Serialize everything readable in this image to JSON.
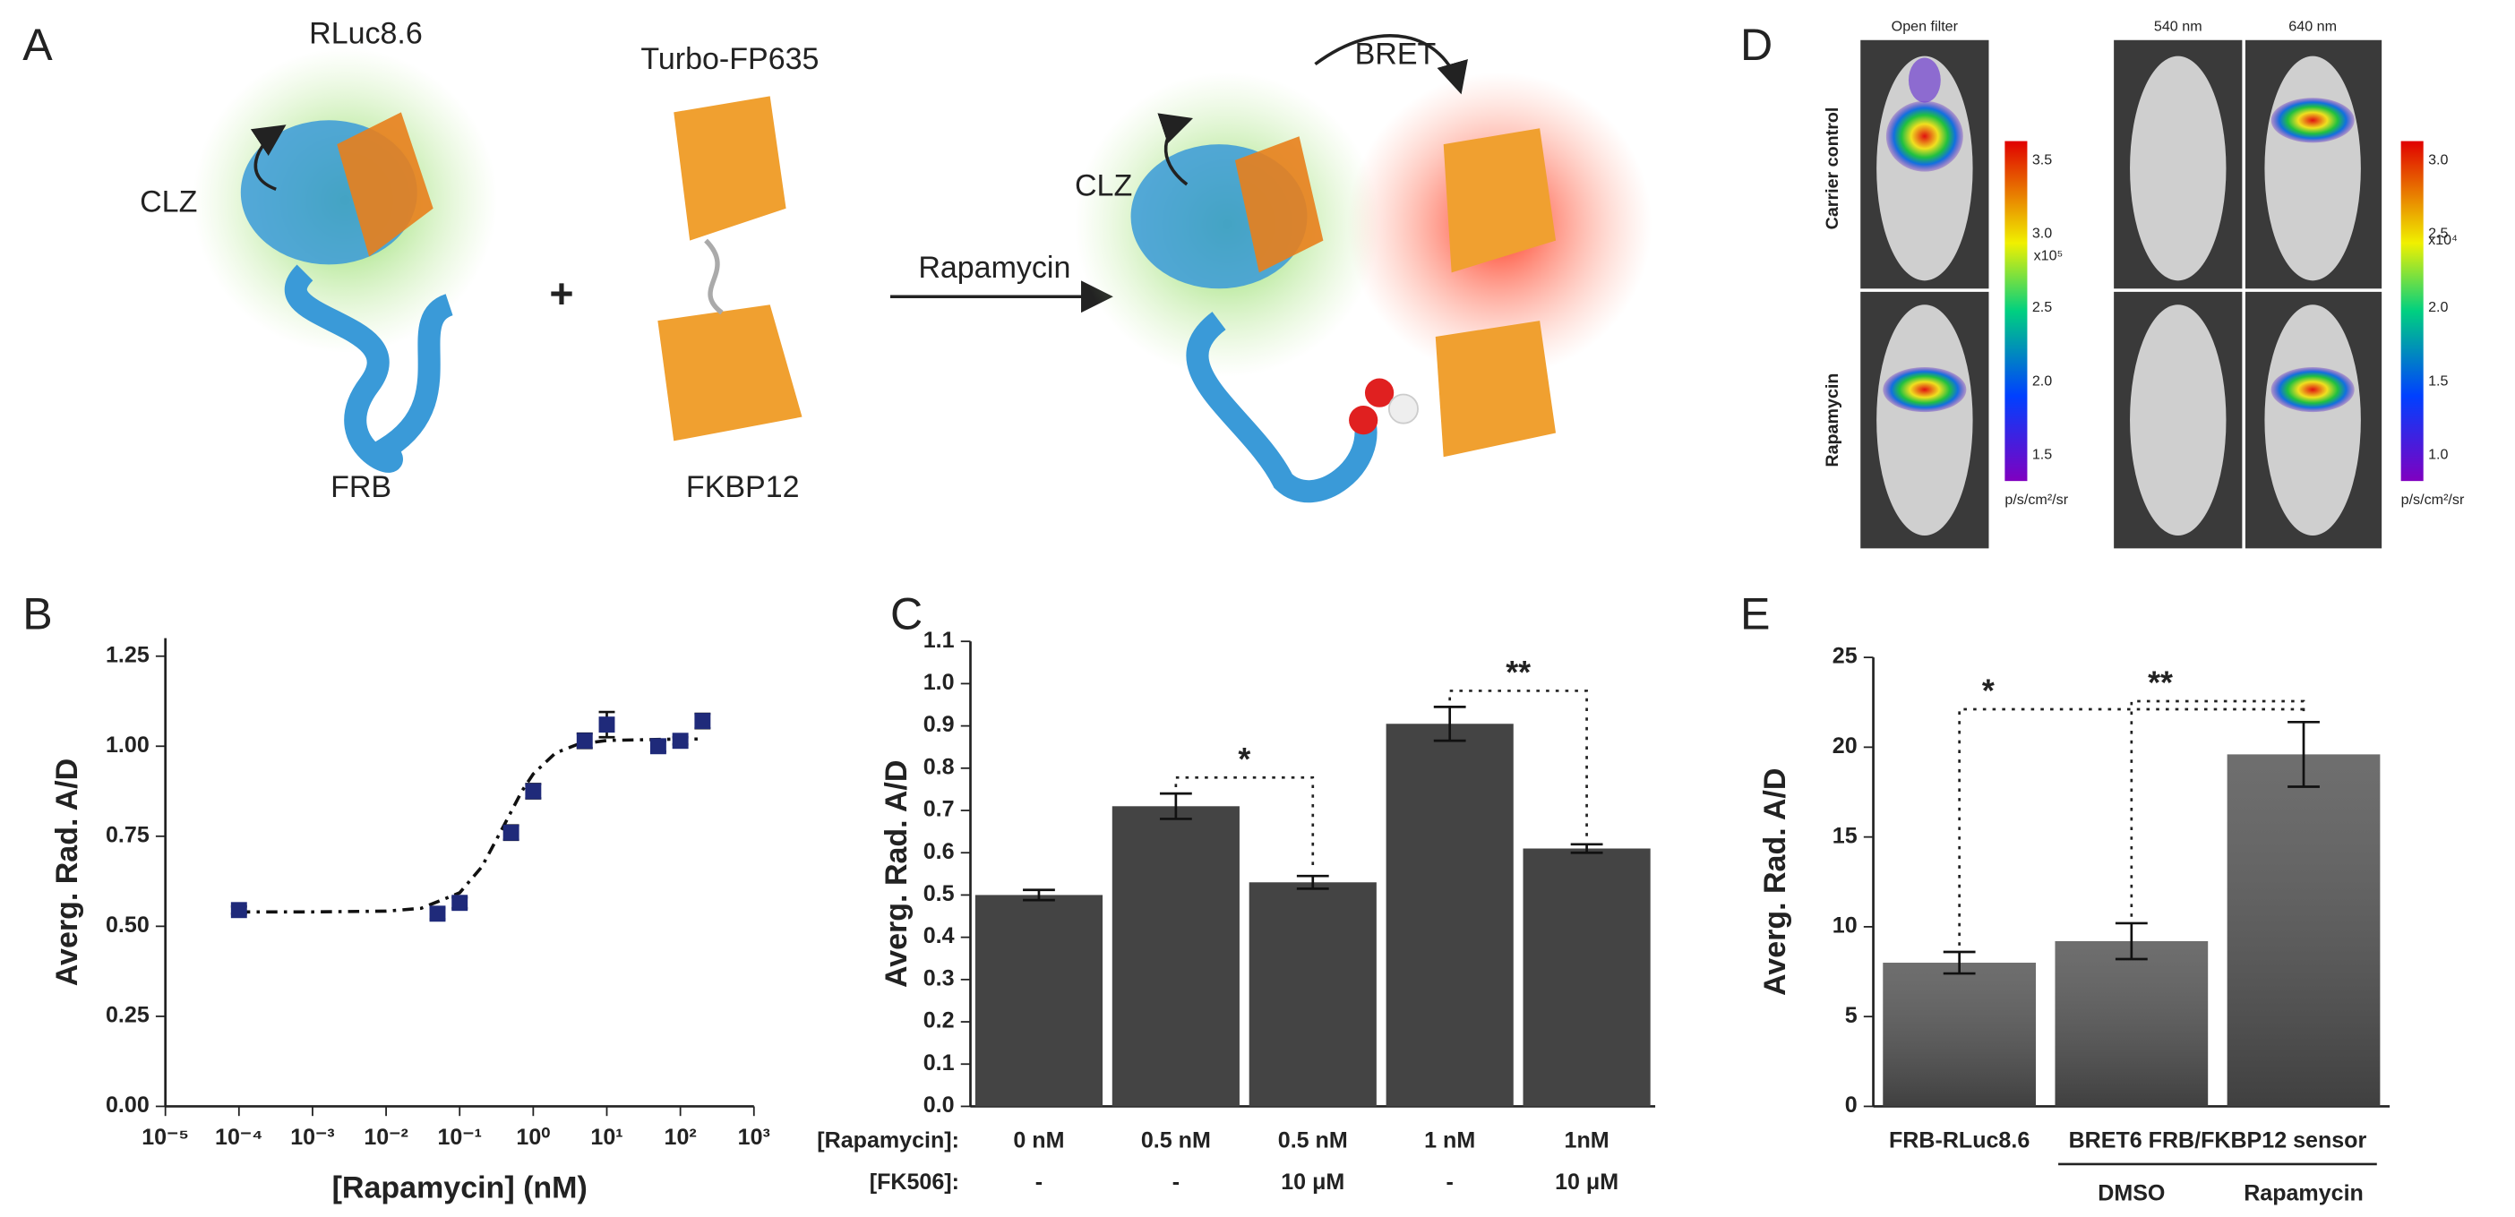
{
  "figure": {
    "panel_labels": [
      "A",
      "B",
      "C",
      "D",
      "E"
    ],
    "panel_a": {
      "rluc": "RLuc8.6",
      "turbo": "Turbo-FP635",
      "clz_left": "CLZ",
      "frb": "FRB",
      "fkbp": "FKBP12",
      "plus": "+",
      "arrow": "Rapamycin",
      "bret": "BRET",
      "clz_right": "CLZ"
    },
    "panel_d": {
      "open_filter": "Open filter",
      "nm540": "540 nm",
      "nm640": "640 nm",
      "carrier": "Carrier control",
      "rapamycin": "Rapamycin",
      "scale_left": [
        "3.5",
        "3.0",
        "2.5",
        "2.0",
        "1.5"
      ],
      "exp_left": "x10⁵",
      "scale_right": [
        "3.0",
        "2.5",
        "2.0",
        "1.5",
        "1.0"
      ],
      "exp_right": "x10⁴",
      "unit_left": "p/s/cm²/sr",
      "unit_right": "p/s/cm²/sr"
    }
  },
  "chart_data": [
    {
      "type": "scatter",
      "y_label": "Averg. Rad. A/D",
      "x_label": "[Rapamycin] (nM)",
      "color": "#1f2a7a",
      "log_x": true,
      "x": [
        0.0001,
        0.05,
        0.1,
        0.5,
        1,
        5,
        10,
        50,
        100,
        200
      ],
      "values": [
        0.545,
        0.535,
        0.565,
        0.76,
        0.875,
        1.015,
        1.06,
        1.0,
        1.015,
        1.07
      ],
      "errors": [
        0.01,
        0.015,
        0.015,
        0.02,
        0.02,
        0.02,
        0.035,
        0.015,
        0.01,
        0.02
      ],
      "fit": {
        "x": [
          0.0001,
          0.001,
          0.01,
          0.03,
          0.1,
          0.2,
          0.4,
          0.7,
          1,
          2,
          4,
          10,
          100,
          200
        ],
        "values": [
          0.54,
          0.54,
          0.542,
          0.55,
          0.593,
          0.665,
          0.78,
          0.875,
          0.923,
          0.981,
          1.005,
          1.016,
          1.02,
          1.02
        ]
      },
      "xlim": [
        1e-05,
        1000
      ],
      "xticks": [
        {
          "value": 1e-05,
          "label": "10⁻⁵"
        },
        {
          "value": 0.0001,
          "label": "10⁻⁴"
        },
        {
          "value": 0.001,
          "label": "10⁻³"
        },
        {
          "value": 0.01,
          "label": "10⁻²"
        },
        {
          "value": 0.1,
          "label": "10⁻¹"
        },
        {
          "value": 1,
          "label": "10⁰"
        },
        {
          "value": 10,
          "label": "10¹"
        },
        {
          "value": 100,
          "label": "10²"
        },
        {
          "value": 1000,
          "label": "10³"
        }
      ],
      "ylim": [
        0,
        1.3
      ],
      "yticks": [
        {
          "value": 0,
          "label": "0.00"
        },
        0.25,
        {
          "value": 0.5,
          "label": "0.50"
        },
        0.75,
        {
          "value": 1,
          "label": "1.00"
        },
        1.25
      ]
    },
    {
      "type": "bar",
      "y_label": "Averg. Rad. A/D",
      "color": "#444444",
      "row_labels": [
        "[Rapamycin]:",
        "[FK506]:"
      ],
      "categories": [
        "0 nM",
        "0.5 nM",
        "0.5 nM",
        "1 nM",
        "1nM"
      ],
      "categories2": [
        "-",
        "-",
        "10 μM",
        "-",
        "10 μM"
      ],
      "values": [
        0.5,
        0.71,
        0.53,
        0.905,
        0.61
      ],
      "errors": [
        0.012,
        0.03,
        0.015,
        0.04,
        0.01
      ],
      "annotations": [
        "*",
        "**"
      ],
      "ylim": [
        0,
        1.1
      ],
      "yticks": [
        {
          "value": 0,
          "label": "0.0"
        },
        0.1,
        0.2,
        0.3,
        0.4,
        0.5,
        0.6,
        0.7,
        0.8,
        0.9,
        {
          "value": 1,
          "label": "1.0"
        },
        1.1
      ]
    },
    {
      "type": "bar",
      "y_label": "Averg. Rad. A/D",
      "color": "#555555",
      "categories": [
        "FRB-RLuc8.6",
        "DMSO",
        "Rapamycin"
      ],
      "group_label": "BRET6 FRB/FKBP12 sensor",
      "values": [
        8.0,
        9.2,
        19.6
      ],
      "errors": [
        0.6,
        1.0,
        1.8
      ],
      "annotations": [
        "*",
        "**"
      ],
      "ylim": [
        0,
        25
      ],
      "yticks": [
        0,
        5,
        10,
        15,
        20,
        25
      ]
    }
  ]
}
